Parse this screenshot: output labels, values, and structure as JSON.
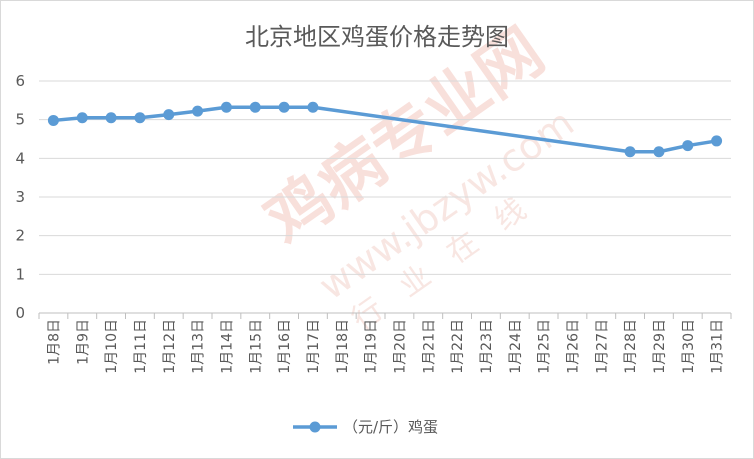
{
  "chart_data": {
    "type": "line",
    "title": "北京地区鸡蛋价格走势图",
    "categories": [
      "1月8日",
      "1月9日",
      "1月10日",
      "1月11日",
      "1月12日",
      "1月13日",
      "1月14日",
      "1月15日",
      "1月16日",
      "1月17日",
      "1月18日",
      "1月19日",
      "1月20日",
      "1月21日",
      "1月22日",
      "1月23日",
      "1月24日",
      "1月25日",
      "1月26日",
      "1月27日",
      "1月28日",
      "1月29日",
      "1月30日",
      "1月31日"
    ],
    "series": [
      {
        "name": "（元/斤）鸡蛋",
        "values": [
          4.98,
          5.05,
          5.05,
          5.05,
          5.13,
          5.22,
          5.32,
          5.32,
          5.32,
          5.32,
          null,
          null,
          null,
          null,
          null,
          null,
          null,
          null,
          null,
          null,
          4.17,
          4.17,
          4.33,
          4.45
        ],
        "color": "#5b9bd5"
      }
    ],
    "ylim": [
      0,
      6
    ],
    "yticks": [
      "0",
      "1",
      "2",
      "3",
      "4",
      "5",
      "6"
    ],
    "grid": true,
    "legend": "bottom",
    "line_style": "connect gaps"
  },
  "watermark": {
    "main": "鸡病专业网",
    "url": "www.jbzyw.com",
    "slogan": "行业在线"
  }
}
